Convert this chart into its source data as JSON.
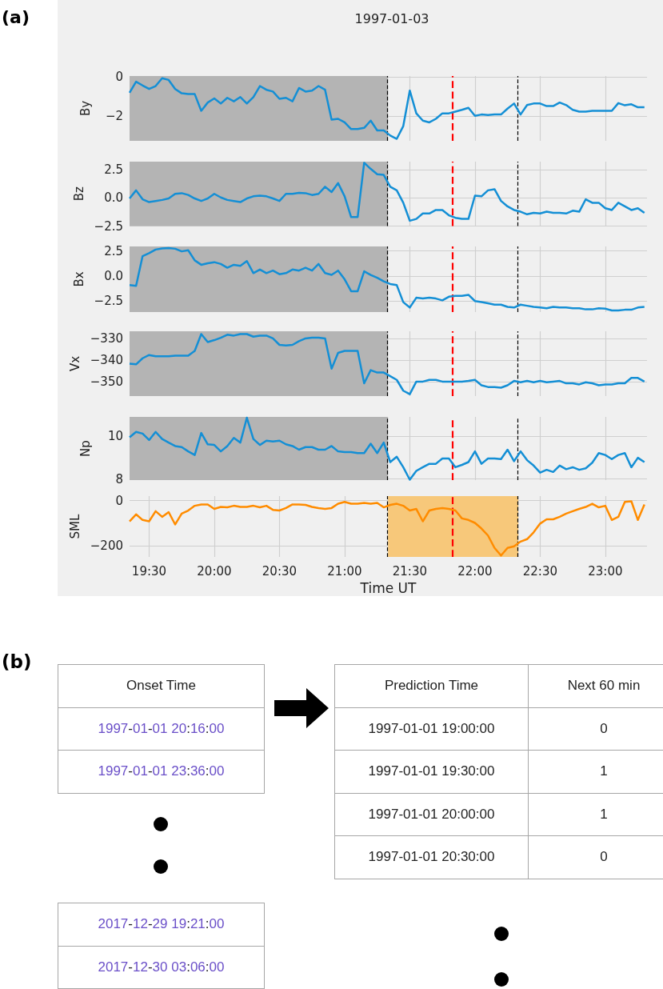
{
  "chart_data": [
    {
      "type": "line",
      "title": "1997-01-03",
      "ylabel": "By",
      "annotations": [
        "(a)"
      ],
      "grid": true,
      "tick_labels": "y",
      "xlim": [
        19.35,
        23.32
      ],
      "ylim": [
        -3.25,
        0.05
      ],
      "yticks": [
        -2,
        0
      ],
      "xticks": [
        {
          "value": 19.5,
          "label": null
        },
        {
          "value": 20,
          "label": null
        },
        {
          "value": 20.5,
          "label": null
        },
        {
          "value": 21,
          "label": null
        },
        {
          "value": 21.5,
          "label": null
        },
        {
          "value": 22,
          "label": null
        },
        {
          "value": 22.5,
          "label": null
        },
        {
          "value": 23,
          "label": null
        }
      ],
      "bands": [
        {
          "axis": "x",
          "from": 19.35,
          "to": 21.333,
          "color": "#b4b4b4"
        }
      ],
      "ref_lines": [
        {
          "axis": "x",
          "value": 21.333,
          "color": "#000000",
          "line_style": "dashed"
        },
        {
          "axis": "x",
          "value": 21.833,
          "color": "#ff0000",
          "line_style": "dashed"
        },
        {
          "axis": "x",
          "value": 22.333,
          "color": "#000000",
          "line_style": "dashed"
        }
      ],
      "x": [
        19.35,
        19.4,
        19.45,
        19.5,
        19.55,
        19.6,
        19.65,
        19.7,
        19.75,
        19.8,
        19.85,
        19.9,
        19.95,
        20,
        20.05,
        20.1,
        20.15,
        20.2,
        20.25,
        20.3,
        20.35,
        20.4,
        20.45,
        20.5,
        20.55,
        20.6,
        20.65,
        20.7,
        20.75,
        20.8,
        20.85,
        20.9,
        20.95,
        21,
        21.05,
        21.1,
        21.15,
        21.2,
        21.25,
        21.3,
        21.35,
        21.4,
        21.45,
        21.5,
        21.55,
        21.6,
        21.65,
        21.7,
        21.75,
        21.8,
        21.85,
        21.9,
        21.95,
        22,
        22.05,
        22.1,
        22.15,
        22.2,
        22.25,
        22.3,
        22.35,
        22.4,
        22.45,
        22.5,
        22.55,
        22.6,
        22.65,
        22.7,
        22.75,
        22.8,
        22.85,
        22.9,
        22.95,
        23,
        23.05,
        23.1,
        23.15,
        23.2,
        23.25,
        23.3
      ],
      "series": [
        {
          "color": "#148fd5",
          "values": [
            -0.8,
            -0.24,
            -0.43,
            -0.61,
            -0.46,
            -0.06,
            -0.15,
            -0.61,
            -0.83,
            -0.87,
            -0.87,
            -1.72,
            -1.3,
            -1.09,
            -1.35,
            -1.06,
            -1.24,
            -1.02,
            -1.35,
            -1.02,
            -0.46,
            -0.65,
            -0.74,
            -1.11,
            -1.06,
            -1.24,
            -0.56,
            -0.74,
            -0.69,
            -0.46,
            -0.65,
            -2.17,
            -2.13,
            -2.31,
            -2.65,
            -2.65,
            -2.59,
            -2.22,
            -2.72,
            -2.72,
            -2.98,
            -3.15,
            -2.5,
            -0.69,
            -1.85,
            -2.22,
            -2.31,
            -2.13,
            -1.85,
            -1.85,
            -1.76,
            -1.67,
            -1.57,
            -1.98,
            -1.91,
            -1.94,
            -1.91,
            -1.91,
            -1.61,
            -1.35,
            -1.91,
            -1.43,
            -1.35,
            -1.35,
            -1.48,
            -1.48,
            -1.3,
            -1.43,
            -1.67,
            -1.76,
            -1.76,
            -1.72,
            -1.72,
            -1.72,
            -1.72,
            -1.33,
            -1.44,
            -1.39,
            -1.54,
            -1.54
          ]
        }
      ]
    },
    {
      "type": "line",
      "ylabel": "Bz",
      "grid": true,
      "tick_labels": "y",
      "xlim": [
        19.35,
        23.32
      ],
      "ylim": [
        -2.5,
        3.2
      ],
      "yticks": [
        -2.5,
        {
          "value": 0,
          "label": "0.0"
        },
        2.5
      ],
      "xticks": [
        {
          "value": 19.5,
          "label": null
        },
        {
          "value": 20,
          "label": null
        },
        {
          "value": 20.5,
          "label": null
        },
        {
          "value": 21,
          "label": null
        },
        {
          "value": 21.5,
          "label": null
        },
        {
          "value": 22,
          "label": null
        },
        {
          "value": 22.5,
          "label": null
        },
        {
          "value": 23,
          "label": null
        }
      ],
      "bands": [
        {
          "axis": "x",
          "from": 19.35,
          "to": 21.333,
          "color": "#b4b4b4"
        }
      ],
      "ref_lines": [
        {
          "axis": "x",
          "value": 21.333,
          "color": "#000000",
          "line_style": "dashed"
        },
        {
          "axis": "x",
          "value": 21.833,
          "color": "#ff0000",
          "line_style": "dashed"
        },
        {
          "axis": "x",
          "value": 22.333,
          "color": "#000000",
          "line_style": "dashed"
        }
      ],
      "x": [
        19.35,
        19.4,
        19.45,
        19.5,
        19.55,
        19.6,
        19.65,
        19.7,
        19.75,
        19.8,
        19.85,
        19.9,
        19.95,
        20,
        20.05,
        20.1,
        20.15,
        20.2,
        20.25,
        20.3,
        20.35,
        20.4,
        20.45,
        20.5,
        20.55,
        20.6,
        20.65,
        20.7,
        20.75,
        20.8,
        20.85,
        20.9,
        20.95,
        21,
        21.05,
        21.1,
        21.15,
        21.2,
        21.25,
        21.3,
        21.35,
        21.4,
        21.45,
        21.5,
        21.55,
        21.6,
        21.65,
        21.7,
        21.75,
        21.8,
        21.85,
        21.9,
        21.95,
        22,
        22.05,
        22.1,
        22.15,
        22.2,
        22.25,
        22.3,
        22.35,
        22.4,
        22.45,
        22.5,
        22.55,
        22.6,
        22.65,
        22.7,
        22.75,
        22.8,
        22.85,
        22.9,
        22.95,
        23,
        23.05,
        23.1,
        23.15,
        23.2,
        23.25,
        23.3
      ],
      "series": [
        {
          "color": "#148fd5",
          "values": [
            -0.06,
            0.66,
            -0.13,
            -0.38,
            -0.28,
            -0.19,
            -0.06,
            0.35,
            0.41,
            0.25,
            -0.06,
            -0.28,
            -0.06,
            0.35,
            0.03,
            -0.19,
            -0.28,
            -0.38,
            -0.06,
            0.13,
            0.19,
            0.13,
            -0.06,
            -0.28,
            0.35,
            0.35,
            0.44,
            0.41,
            0.25,
            0.35,
            0.98,
            0.51,
            1.3,
            0.13,
            -1.71,
            -1.71,
            3.1,
            2.56,
            2.09,
            2.03,
            0.98,
            0.66,
            -0.44,
            -2.03,
            -1.87,
            -1.39,
            -1.39,
            -1.08,
            -1.08,
            -1.55,
            -1.77,
            -1.87,
            -1.87,
            0.19,
            0.13,
            0.66,
            0.76,
            -0.28,
            -0.76,
            -1.08,
            -1.23,
            -1.46,
            -1.33,
            -1.39,
            -1.23,
            -1.33,
            -1.33,
            -1.39,
            -1.14,
            -1.23,
            -0.13,
            -0.44,
            -0.44,
            -0.92,
            -1.08,
            -0.44,
            -0.76,
            -1.08,
            -0.92,
            -1.33
          ]
        }
      ]
    },
    {
      "type": "line",
      "ylabel": "Bx",
      "grid": true,
      "tick_labels": "y",
      "xlim": [
        19.35,
        23.32
      ],
      "ylim": [
        -3.6,
        2.95
      ],
      "yticks": [
        -2.5,
        {
          "value": 0,
          "label": "0.0"
        },
        2.5
      ],
      "xticks": [
        {
          "value": 19.5,
          "label": null
        },
        {
          "value": 20,
          "label": null
        },
        {
          "value": 20.5,
          "label": null
        },
        {
          "value": 21,
          "label": null
        },
        {
          "value": 21.5,
          "label": null
        },
        {
          "value": 22,
          "label": null
        },
        {
          "value": 22.5,
          "label": null
        },
        {
          "value": 23,
          "label": null
        }
      ],
      "bands": [
        {
          "axis": "x",
          "from": 19.35,
          "to": 21.333,
          "color": "#b4b4b4"
        }
      ],
      "ref_lines": [
        {
          "axis": "x",
          "value": 21.333,
          "color": "#000000",
          "line_style": "dashed"
        },
        {
          "axis": "x",
          "value": 21.833,
          "color": "#ff0000",
          "line_style": "dashed"
        },
        {
          "axis": "x",
          "value": 22.333,
          "color": "#000000",
          "line_style": "dashed"
        }
      ],
      "x": [
        19.35,
        19.4,
        19.45,
        19.5,
        19.55,
        19.6,
        19.65,
        19.7,
        19.75,
        19.8,
        19.85,
        19.9,
        19.95,
        20,
        20.05,
        20.1,
        20.15,
        20.2,
        20.25,
        20.3,
        20.35,
        20.4,
        20.45,
        20.5,
        20.55,
        20.6,
        20.65,
        20.7,
        20.75,
        20.8,
        20.85,
        20.9,
        20.95,
        21,
        21.05,
        21.1,
        21.15,
        21.2,
        21.25,
        21.3,
        21.35,
        21.4,
        21.45,
        21.5,
        21.55,
        21.6,
        21.65,
        21.7,
        21.75,
        21.8,
        21.85,
        21.9,
        21.95,
        22,
        22.05,
        22.1,
        22.15,
        22.2,
        22.25,
        22.3,
        22.35,
        22.4,
        22.45,
        22.5,
        22.55,
        22.6,
        22.65,
        22.7,
        22.75,
        22.8,
        22.85,
        22.9,
        22.95,
        23,
        23.05,
        23.1,
        23.15,
        23.2,
        23.25,
        23.3
      ],
      "series": [
        {
          "color": "#148fd5",
          "values": [
            -0.91,
            -0.98,
            1.99,
            2.28,
            2.64,
            2.75,
            2.79,
            2.72,
            2.46,
            2.57,
            1.56,
            1.12,
            1.27,
            1.38,
            1.2,
            0.83,
            1.12,
            1.01,
            1.49,
            0.29,
            0.65,
            0.29,
            0.54,
            0.18,
            0.29,
            0.65,
            0.54,
            0.83,
            0.54,
            1.2,
            0.29,
            0.11,
            0.54,
            -0.33,
            -1.52,
            -1.52,
            0.47,
            0.11,
            -0.18,
            -0.54,
            -0.8,
            -0.91,
            -2.61,
            -3.15,
            -2.17,
            -2.25,
            -2.17,
            -2.25,
            -2.43,
            -2.07,
            -1.99,
            -1.99,
            -1.88,
            -2.5,
            -2.61,
            -2.72,
            -2.86,
            -2.86,
            -3.08,
            -3.15,
            -2.86,
            -2.97,
            -3.08,
            -3.15,
            -3.22,
            -3.08,
            -3.15,
            -3.15,
            -3.22,
            -3.22,
            -3.33,
            -3.33,
            -3.22,
            -3.26,
            -3.44,
            -3.44,
            -3.37,
            -3.37,
            -3.15,
            -3.08
          ]
        }
      ]
    },
    {
      "type": "line",
      "ylabel": "Vx",
      "grid": true,
      "tick_labels": "y",
      "xlim": [
        19.35,
        23.32
      ],
      "ylim": [
        -356.7,
        -326.7
      ],
      "yticks": [
        -350,
        -340,
        -330
      ],
      "xticks": [
        {
          "value": 19.5,
          "label": null
        },
        {
          "value": 20,
          "label": null
        },
        {
          "value": 20.5,
          "label": null
        },
        {
          "value": 21,
          "label": null
        },
        {
          "value": 21.5,
          "label": null
        },
        {
          "value": 22,
          "label": null
        },
        {
          "value": 22.5,
          "label": null
        },
        {
          "value": 23,
          "label": null
        }
      ],
      "bands": [
        {
          "axis": "x",
          "from": 19.35,
          "to": 21.333,
          "color": "#b4b4b4"
        }
      ],
      "ref_lines": [
        {
          "axis": "x",
          "value": 21.333,
          "color": "#000000",
          "line_style": "dashed"
        },
        {
          "axis": "x",
          "value": 21.833,
          "color": "#ff0000",
          "line_style": "dashed"
        },
        {
          "axis": "x",
          "value": 22.333,
          "color": "#000000",
          "line_style": "dashed"
        }
      ],
      "x": [
        19.35,
        19.4,
        19.45,
        19.5,
        19.55,
        19.6,
        19.65,
        19.7,
        19.75,
        19.8,
        19.85,
        19.9,
        19.95,
        20,
        20.05,
        20.1,
        20.15,
        20.2,
        20.25,
        20.3,
        20.35,
        20.4,
        20.45,
        20.5,
        20.55,
        20.6,
        20.65,
        20.7,
        20.75,
        20.8,
        20.85,
        20.9,
        20.95,
        21,
        21.05,
        21.1,
        21.15,
        21.2,
        21.25,
        21.3,
        21.35,
        21.4,
        21.45,
        21.5,
        21.55,
        21.6,
        21.65,
        21.7,
        21.75,
        21.8,
        21.85,
        21.9,
        21.95,
        22,
        22.05,
        22.1,
        22.15,
        22.2,
        22.25,
        22.3,
        22.35,
        22.4,
        22.45,
        22.5,
        22.55,
        22.6,
        22.65,
        22.7,
        22.75,
        22.8,
        22.85,
        22.9,
        22.95,
        23,
        23.05,
        23.1,
        23.15,
        23.2,
        23.25,
        23.3
      ],
      "series": [
        {
          "color": "#148fd5",
          "values": [
            -341.7,
            -342,
            -339.2,
            -337.7,
            -338.3,
            -338.3,
            -338.3,
            -338,
            -338,
            -338,
            -335.8,
            -328,
            -331.7,
            -330.8,
            -329.7,
            -328.3,
            -328.7,
            -328,
            -328,
            -329.2,
            -328.7,
            -328.7,
            -330,
            -333,
            -333.3,
            -333,
            -331.3,
            -330,
            -329.7,
            -329.7,
            -330,
            -344,
            -336.7,
            -335.8,
            -335.8,
            -335.8,
            -350.8,
            -344.7,
            -345.8,
            -345.8,
            -347.5,
            -349.2,
            -354.2,
            -355.8,
            -350,
            -350,
            -349.2,
            -349.2,
            -350,
            -350,
            -350,
            -350,
            -349.7,
            -349.2,
            -351.7,
            -352.5,
            -352.5,
            -352.8,
            -351.7,
            -349.7,
            -350.3,
            -349.7,
            -350.3,
            -349.7,
            -350.3,
            -350,
            -349.7,
            -350.8,
            -350.8,
            -351.3,
            -350.3,
            -350.8,
            -351.7,
            -351.3,
            -351.3,
            -350.8,
            -350.8,
            -348.3,
            -348.3,
            -350
          ]
        }
      ]
    },
    {
      "type": "line",
      "ylabel": "Np",
      "grid": true,
      "tick_labels": "y",
      "xlim": [
        19.35,
        23.32
      ],
      "ylim": [
        7.95,
        10.9
      ],
      "yticks": [
        8,
        10
      ],
      "xticks": [
        {
          "value": 19.5,
          "label": null
        },
        {
          "value": 20,
          "label": null
        },
        {
          "value": 20.5,
          "label": null
        },
        {
          "value": 21,
          "label": null
        },
        {
          "value": 21.5,
          "label": null
        },
        {
          "value": 22,
          "label": null
        },
        {
          "value": 22.5,
          "label": null
        },
        {
          "value": 23,
          "label": null
        }
      ],
      "bands": [
        {
          "axis": "x",
          "from": 19.35,
          "to": 21.333,
          "color": "#b4b4b4"
        }
      ],
      "ref_lines": [
        {
          "axis": "x",
          "value": 21.333,
          "color": "#000000",
          "line_style": "dashed"
        },
        {
          "axis": "x",
          "value": 21.833,
          "color": "#ff0000",
          "line_style": "dashed"
        },
        {
          "axis": "x",
          "value": 22.333,
          "color": "#000000",
          "line_style": "dashed"
        }
      ],
      "x": [
        19.35,
        19.4,
        19.45,
        19.5,
        19.55,
        19.6,
        19.65,
        19.7,
        19.75,
        19.8,
        19.85,
        19.9,
        19.95,
        20,
        20.05,
        20.1,
        20.15,
        20.2,
        20.25,
        20.3,
        20.35,
        20.4,
        20.45,
        20.5,
        20.55,
        20.6,
        20.65,
        20.7,
        20.75,
        20.8,
        20.85,
        20.9,
        20.95,
        21,
        21.05,
        21.1,
        21.15,
        21.2,
        21.25,
        21.3,
        21.35,
        21.4,
        21.45,
        21.5,
        21.55,
        21.6,
        21.65,
        21.7,
        21.75,
        21.8,
        21.85,
        21.9,
        21.95,
        22,
        22.05,
        22.1,
        22.15,
        22.2,
        22.25,
        22.3,
        22.35,
        22.4,
        22.45,
        22.5,
        22.55,
        22.6,
        22.65,
        22.7,
        22.75,
        22.8,
        22.85,
        22.9,
        22.95,
        23,
        23.05,
        23.1,
        23.15,
        23.2,
        23.25,
        23.3
      ],
      "series": [
        {
          "color": "#148fd5",
          "values": [
            9.95,
            10.2,
            10.12,
            9.82,
            10.2,
            9.87,
            9.7,
            9.54,
            9.49,
            9.29,
            9.12,
            10.15,
            9.62,
            9.59,
            9.29,
            9.54,
            9.92,
            9.7,
            10.86,
            9.87,
            9.59,
            9.79,
            9.75,
            9.79,
            9.62,
            9.54,
            9.37,
            9.49,
            9.49,
            9.37,
            9.37,
            9.54,
            9.29,
            9.26,
            9.26,
            9.21,
            9.21,
            9.65,
            9.21,
            9.7,
            8.79,
            9.04,
            8.55,
            7.97,
            8.38,
            8.55,
            8.71,
            8.71,
            8.96,
            8.96,
            8.55,
            8.66,
            8.79,
            9.29,
            8.71,
            8.96,
            8.96,
            8.93,
            9.37,
            8.83,
            9.29,
            8.88,
            8.63,
            8.3,
            8.43,
            8.33,
            8.63,
            8.46,
            8.55,
            8.43,
            8.5,
            8.76,
            9.21,
            9.12,
            8.93,
            9.12,
            9.21,
            8.55,
            8.99,
            8.79
          ]
        }
      ]
    },
    {
      "type": "line",
      "ylabel": "SML",
      "xlabel": "Time UT",
      "grid": true,
      "xlim": [
        19.35,
        23.32
      ],
      "ylim": [
        -250,
        20
      ],
      "yticks": [
        -200,
        0
      ],
      "xticks": [
        {
          "value": 19.5,
          "label": "19:30"
        },
        {
          "value": 20,
          "label": "20:00"
        },
        {
          "value": 20.5,
          "label": "20:30"
        },
        {
          "value": 21,
          "label": "21:00"
        },
        {
          "value": 21.5,
          "label": "21:30"
        },
        {
          "value": 22,
          "label": "22:00"
        },
        {
          "value": 22.5,
          "label": "22:30"
        },
        {
          "value": 23,
          "label": "23:00"
        }
      ],
      "bands": [
        {
          "axis": "x",
          "from": 21.333,
          "to": 22.333,
          "color": "#f7c87a"
        }
      ],
      "ref_lines": [
        {
          "axis": "x",
          "value": 21.333,
          "color": "#000000",
          "line_style": "dashed"
        },
        {
          "axis": "x",
          "value": 21.833,
          "color": "#ff0000",
          "line_style": "dashed"
        },
        {
          "axis": "x",
          "value": 22.333,
          "color": "#000000",
          "line_style": "dashed"
        }
      ],
      "x": [
        19.35,
        19.4,
        19.45,
        19.5,
        19.55,
        19.6,
        19.65,
        19.7,
        19.75,
        19.8,
        19.85,
        19.9,
        19.95,
        20,
        20.05,
        20.1,
        20.15,
        20.2,
        20.25,
        20.3,
        20.35,
        20.4,
        20.45,
        20.5,
        20.55,
        20.6,
        20.65,
        20.7,
        20.75,
        20.8,
        20.85,
        20.9,
        20.95,
        21,
        21.05,
        21.1,
        21.15,
        21.2,
        21.25,
        21.3,
        21.35,
        21.4,
        21.45,
        21.5,
        21.55,
        21.6,
        21.65,
        21.7,
        21.75,
        21.8,
        21.85,
        21.9,
        21.95,
        22,
        22.05,
        22.1,
        22.15,
        22.2,
        22.25,
        22.3,
        22.35,
        22.4,
        22.45,
        22.5,
        22.55,
        22.6,
        22.65,
        22.7,
        22.75,
        22.8,
        22.85,
        22.9,
        22.95,
        23,
        23.05,
        23.1,
        23.15,
        23.2,
        23.25,
        23.3
      ],
      "series": [
        {
          "color": "#ff8c00",
          "values": [
            -92,
            -61,
            -86,
            -92,
            -47,
            -72,
            -51,
            -106,
            -58,
            -44,
            -23,
            -17,
            -17,
            -37,
            -28,
            -30,
            -23,
            -28,
            -28,
            -23,
            -30,
            -23,
            -41,
            -44,
            -33,
            -17,
            -17,
            -19,
            -28,
            -33,
            -37,
            -33,
            -14,
            -6,
            -14,
            -14,
            -10,
            -14,
            -10,
            -30,
            -19,
            -14,
            -23,
            -44,
            -37,
            -92,
            -44,
            -37,
            -33,
            -37,
            -44,
            -79,
            -86,
            -99,
            -124,
            -155,
            -210,
            -244,
            -210,
            -203,
            -182,
            -171,
            -141,
            -102,
            -83,
            -83,
            -72,
            -58,
            -47,
            -37,
            -28,
            -14,
            -30,
            -23,
            -86,
            -72,
            -6,
            -3,
            -86,
            -17
          ]
        }
      ]
    },
    {
      "type": "other",
      "annotations": [
        "(b)",
        "Onset Time",
        "1997-01-01 20:16:00",
        "1997-01-01 23:36:00",
        "2017-12-29 19:21:00",
        "2017-12-30 03:06:00",
        "Prediction Time",
        "Next 60 min",
        "1997-01-01 19:00:00",
        "0",
        "1997-01-01 19:30:00",
        "1",
        "1997-01-01 20:00:00",
        "1",
        "1997-01-01 20:30:00",
        "0"
      ]
    }
  ]
}
